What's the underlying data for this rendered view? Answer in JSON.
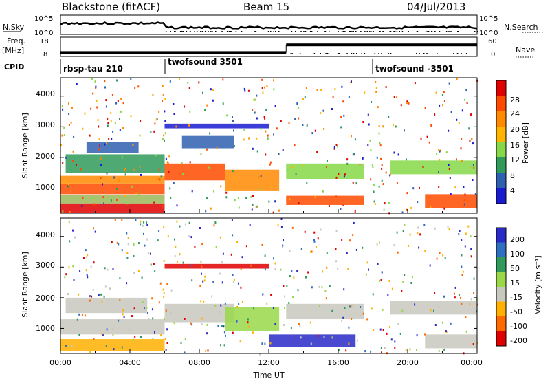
{
  "header": {
    "radar": "Blackstone (fitACF)",
    "beam": "Beam 15",
    "date": "04/Jul/2013"
  },
  "aux_labels": {
    "nsky": "N.Sky",
    "nsearch": "N.Search",
    "freq_line1": "Freq.",
    "freq_line2": "[MHz]",
    "nave": "Nave",
    "cpid": "CPID"
  },
  "noise_panel": {
    "left_ticks": [
      "10^5",
      "10^0"
    ],
    "right_ticks": [
      "10^5",
      "10^0"
    ]
  },
  "freq_panel": {
    "left_ticks": [
      "18",
      "8"
    ],
    "right_ticks": [
      "60",
      "0"
    ],
    "frequency_mhz": [
      {
        "from_hour": 0,
        "to_hour": 13,
        "value": 10
      },
      {
        "from_hour": 13,
        "to_hour": 24,
        "value": 14
      }
    ]
  },
  "cpid_segments": [
    {
      "label": "rbsp-tau 210",
      "start_hour": 0
    },
    {
      "label": "twofsound 3501",
      "start_hour": 6
    },
    {
      "label": "twofsound -3501",
      "start_hour": 18
    }
  ],
  "chart_data": [
    {
      "type": "heatmap",
      "title": "",
      "xlabel": "",
      "ylabel": "Slant Range [km]",
      "xlim": [
        0,
        24
      ],
      "ylim": [
        180,
        4600
      ],
      "y_ticks": [
        "4000",
        "3000",
        "2000",
        "1000"
      ],
      "colorbar": {
        "label": "Power [dB]",
        "ticks": [
          "28",
          "24",
          "20",
          "16",
          "12",
          "8",
          "4"
        ],
        "colors": [
          "#e00000",
          "#ff4b00",
          "#ff8a00",
          "#ffb400",
          "#86d848",
          "#2f9a5a",
          "#2f5fb0",
          "#1a1ad0"
        ]
      },
      "bands": [
        {
          "x0": 0,
          "x1": 6,
          "r0": 200,
          "r1": 500,
          "color": "#e00000"
        },
        {
          "x0": 0,
          "x1": 6,
          "r0": 500,
          "r1": 780,
          "color": "#9ab85a"
        },
        {
          "x0": 0,
          "x1": 6,
          "r0": 800,
          "r1": 1150,
          "color": "#ff4b00"
        },
        {
          "x0": 0,
          "x1": 6,
          "r0": 1150,
          "r1": 1400,
          "color": "#ff8a00"
        },
        {
          "x0": 0.3,
          "x1": 6,
          "r0": 1500,
          "r1": 2100,
          "color": "#2f9a5a"
        },
        {
          "x0": 1.5,
          "x1": 4.5,
          "r0": 2150,
          "r1": 2500,
          "color": "#2f5fb0"
        },
        {
          "x0": 6,
          "x1": 9.5,
          "r0": 1250,
          "r1": 1800,
          "color": "#ff4b00"
        },
        {
          "x0": 7,
          "x1": 10,
          "r0": 2300,
          "r1": 2700,
          "color": "#2f5fb0"
        },
        {
          "x0": 6,
          "x1": 12,
          "r0": 2950,
          "r1": 3100,
          "color": "#1a1ad0"
        },
        {
          "x0": 9.5,
          "x1": 12.6,
          "r0": 900,
          "r1": 1600,
          "color": "#ff8a00"
        },
        {
          "x0": 13,
          "x1": 17.5,
          "r0": 1300,
          "r1": 1800,
          "color": "#86d848"
        },
        {
          "x0": 13,
          "x1": 17.5,
          "r0": 450,
          "r1": 750,
          "color": "#ff4b00"
        },
        {
          "x0": 19,
          "x1": 24,
          "r0": 1450,
          "r1": 1900,
          "color": "#86d848"
        },
        {
          "x0": 21,
          "x1": 24,
          "r0": 350,
          "r1": 800,
          "color": "#ff4b00"
        }
      ]
    },
    {
      "type": "heatmap",
      "title": "",
      "xlabel": "Time UT",
      "ylabel": "Slant Range [km]",
      "xlim": [
        0,
        24
      ],
      "ylim": [
        180,
        4600
      ],
      "x_ticks": [
        "00:00",
        "04:00",
        "08:00",
        "12:00",
        "16:00",
        "20:00",
        "00:00"
      ],
      "y_ticks": [
        "4000",
        "3000",
        "2000",
        "1000"
      ],
      "colorbar": {
        "label": "Velocity [m s⁻¹]",
        "ticks": [
          "200",
          "100",
          "50",
          "15",
          "-15",
          "-50",
          "-100",
          "-200"
        ],
        "colors": [
          "#2a2ac8",
          "#2f6fc0",
          "#2f9a5a",
          "#9ad84a",
          "#c8c8c0",
          "#ffb000",
          "#ff6a00",
          "#e00000"
        ]
      },
      "bands": [
        {
          "x0": 0,
          "x1": 6,
          "r0": 250,
          "r1": 650,
          "color": "#ffb000"
        },
        {
          "x0": 0,
          "x1": 6,
          "r0": 800,
          "r1": 1300,
          "color": "#c8c8c0"
        },
        {
          "x0": 0.3,
          "x1": 5,
          "r0": 1500,
          "r1": 2000,
          "color": "#c8c8c0"
        },
        {
          "x0": 6,
          "x1": 10,
          "r0": 1200,
          "r1": 1800,
          "color": "#c8c8c0"
        },
        {
          "x0": 6,
          "x1": 12,
          "r0": 2950,
          "r1": 3100,
          "color": "#e00000"
        },
        {
          "x0": 9.5,
          "x1": 12.6,
          "r0": 900,
          "r1": 1700,
          "color": "#9ad84a"
        },
        {
          "x0": 13,
          "x1": 17.5,
          "r0": 1300,
          "r1": 1800,
          "color": "#c8c8c0"
        },
        {
          "x0": 12,
          "x1": 17,
          "r0": 400,
          "r1": 800,
          "color": "#2a2ac8"
        },
        {
          "x0": 19,
          "x1": 24,
          "r0": 1450,
          "r1": 1900,
          "color": "#c8c8c0"
        },
        {
          "x0": 21,
          "x1": 24,
          "r0": 350,
          "r1": 800,
          "color": "#c8c8c0"
        }
      ]
    }
  ]
}
